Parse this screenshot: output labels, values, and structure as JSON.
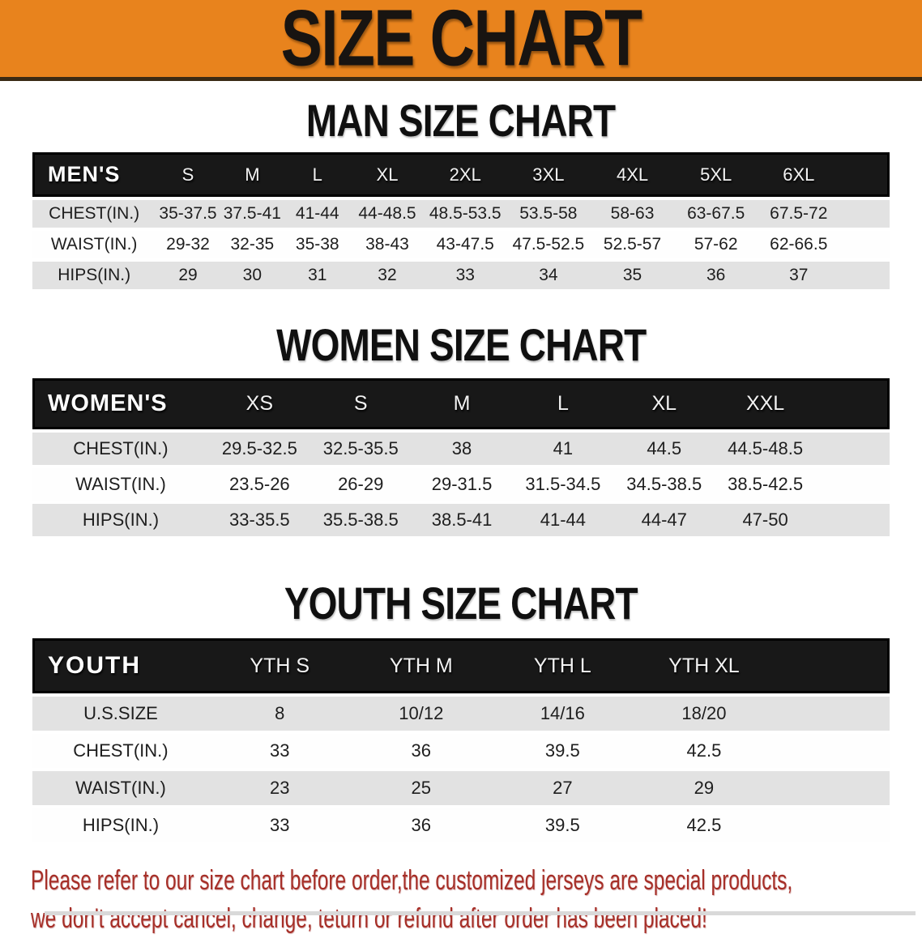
{
  "banner": {
    "title": "SIZE CHART",
    "bg_color": "#E8831D",
    "text_color": "#181411"
  },
  "sections": [
    {
      "heading": "MAN SIZE CHART",
      "table": {
        "label": "MEN'S",
        "columns": [
          "S",
          "M",
          "L",
          "XL",
          "2XL",
          "3XL",
          "4XL",
          "5XL",
          "6XL"
        ],
        "rows": [
          {
            "label": "CHEST(IN.)",
            "values": [
              "35-37.5",
              "37.5-41",
              "41-44",
              "44-48.5",
              "48.5-53.5",
              "53.5-58",
              "58-63",
              "63-67.5",
              "67.5-72"
            ]
          },
          {
            "label": "WAIST(IN.)",
            "values": [
              "29-32",
              "32-35",
              "35-38",
              "38-43",
              "43-47.5",
              "47.5-52.5",
              "52.5-57",
              "57-62",
              "62-66.5"
            ]
          },
          {
            "label": "HIPS(IN.)",
            "values": [
              "29",
              "30",
              "31",
              "32",
              "33",
              "34",
              "35",
              "36",
              "37"
            ]
          }
        ]
      }
    },
    {
      "heading": "WOMEN SIZE CHART",
      "table": {
        "label": "WOMEN'S",
        "columns": [
          "XS",
          "S",
          "M",
          "L",
          "XL",
          "XXL"
        ],
        "rows": [
          {
            "label": "CHEST(IN.)",
            "values": [
              "29.5-32.5",
              "32.5-35.5",
              "38",
              "41",
              "44.5",
              "44.5-48.5"
            ]
          },
          {
            "label": "WAIST(IN.)",
            "values": [
              "23.5-26",
              "26-29",
              "29-31.5",
              "31.5-34.5",
              "34.5-38.5",
              "38.5-42.5"
            ]
          },
          {
            "label": "HIPS(IN.)",
            "values": [
              "33-35.5",
              "35.5-38.5",
              "38.5-41",
              "41-44",
              "44-47",
              "47-50"
            ]
          }
        ]
      }
    },
    {
      "heading": "YOUTH SIZE CHART",
      "table": {
        "label": "YOUTH",
        "columns": [
          "YTH S",
          "YTH M",
          "YTH L",
          "YTH XL"
        ],
        "rows": [
          {
            "label": "U.S.SIZE",
            "values": [
              "8",
              "10/12",
              "14/16",
              "18/20"
            ]
          },
          {
            "label": "CHEST(IN.)",
            "values": [
              "33",
              "36",
              "39.5",
              "42.5"
            ]
          },
          {
            "label": "WAIST(IN.)",
            "values": [
              "23",
              "25",
              "27",
              "29"
            ]
          },
          {
            "label": "HIPS(IN.)",
            "values": [
              "33",
              "36",
              "39.5",
              "42.5"
            ]
          }
        ]
      }
    }
  ],
  "disclaimer": {
    "lines": [
      "Please refer to our size chart before order,the customized jerseys are special products,",
      "we don't accept cancel, change, teturn or refund after order has been placed!"
    ],
    "color": "#A62F28"
  },
  "colors": {
    "stripe_gray": "#E2E2E2",
    "header_bar": "#181818",
    "banner_divider": "#3A2A14"
  }
}
